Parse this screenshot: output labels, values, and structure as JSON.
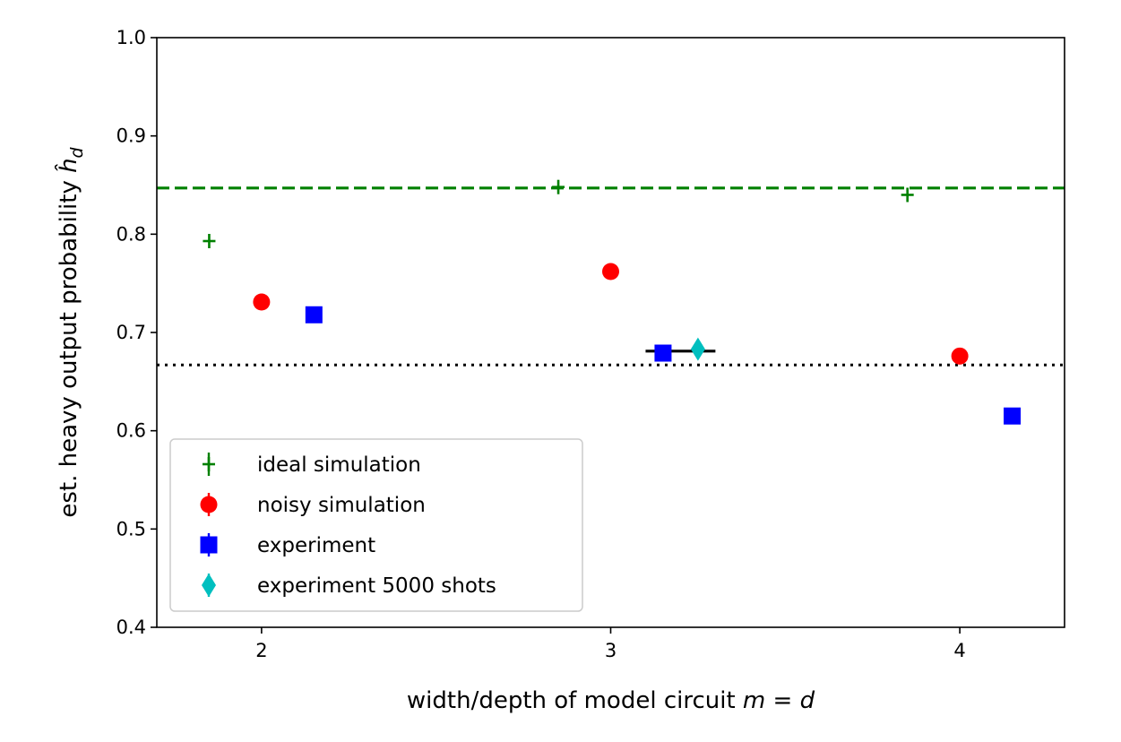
{
  "chart_data": {
    "type": "scatter",
    "xlabel": "width/depth of model circuit m = d",
    "xlabel_parts": {
      "text": "width/depth of model circuit ",
      "math": "m = d"
    },
    "ylabel": "est. heavy output probability ĥ_d",
    "ylabel_parts": {
      "text": "est. heavy output probability ",
      "math": "ĥ",
      "sub": "d"
    },
    "xlim": [
      1.7,
      4.3
    ],
    "ylim": [
      0.4,
      1.0
    ],
    "xticks": [
      2,
      3,
      4
    ],
    "xtick_labels": [
      "2",
      "3",
      "4"
    ],
    "yticks": [
      0.4,
      0.5,
      0.6,
      0.7,
      0.8,
      0.9,
      1.0
    ],
    "ytick_labels": [
      "0.4",
      "0.5",
      "0.6",
      "0.7",
      "0.8",
      "0.9",
      "1.0"
    ],
    "grid": false,
    "legend_position": "lower-left",
    "series": [
      {
        "name": "ideal simulation",
        "marker": "plus",
        "color": "#008000",
        "points": [
          {
            "x": 1.85,
            "y": 0.793
          },
          {
            "x": 2.85,
            "y": 0.848
          },
          {
            "x": 3.85,
            "y": 0.84
          }
        ]
      },
      {
        "name": "noisy simulation",
        "marker": "circle",
        "color": "#ff0000",
        "points": [
          {
            "x": 2.0,
            "y": 0.731
          },
          {
            "x": 3.0,
            "y": 0.762
          },
          {
            "x": 4.0,
            "y": 0.676
          }
        ]
      },
      {
        "name": "experiment",
        "marker": "square",
        "color": "#0000ff",
        "points": [
          {
            "x": 2.15,
            "y": 0.718
          },
          {
            "x": 3.15,
            "y": 0.679
          },
          {
            "x": 4.15,
            "y": 0.615
          }
        ]
      },
      {
        "name": "experiment 5000 shots",
        "marker": "diamond",
        "color": "#00bfbf",
        "points": [
          {
            "x": 3.25,
            "y": 0.683
          }
        ]
      }
    ],
    "reference_lines": [
      {
        "y": 0.847,
        "style": "dashed",
        "color": "#008000"
      },
      {
        "y": 0.667,
        "style": "dotted",
        "color": "#000000"
      }
    ],
    "range_bar": {
      "x_from": 3.1,
      "x_to": 3.3,
      "y": 0.681,
      "color": "#000000"
    }
  }
}
